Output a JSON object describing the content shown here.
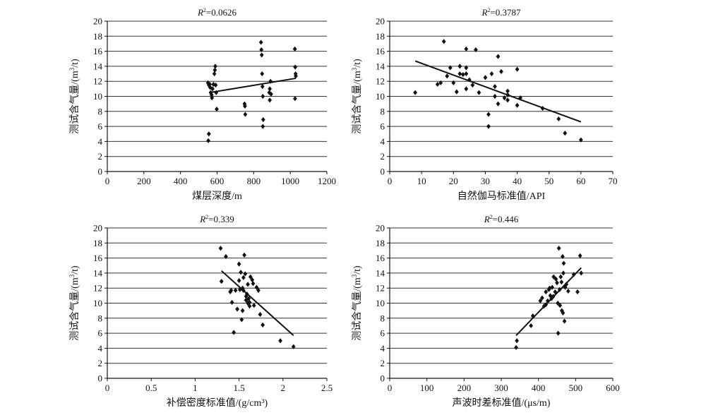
{
  "chart_data": [
    {
      "type": "scatter",
      "title_prefix": "R",
      "title_sup": "2",
      "title_value": "=0.0626",
      "xlabel": "煤层深度/m",
      "ylabel_main": "测试含气量/(m",
      "ylabel_sup": "3",
      "ylabel_end": "/t)",
      "xlim": [
        0,
        1200
      ],
      "ylim": [
        0,
        20
      ],
      "xticks": [
        "0",
        "200",
        "400",
        "600",
        "800",
        "1000",
        "1200"
      ],
      "yticks": [
        "0",
        "2",
        "4",
        "6",
        "8",
        "10",
        "12",
        "14",
        "16",
        "18",
        "20"
      ],
      "grid": "horizontal",
      "trendline": [
        [
          560,
          10.5
        ],
        [
          1030,
          12.4
        ]
      ],
      "points": [
        [
          550,
          11.8
        ],
        [
          555,
          11.5
        ],
        [
          560,
          11.6
        ],
        [
          562,
          11.2
        ],
        [
          565,
          10.5
        ],
        [
          570,
          10.2
        ],
        [
          572,
          9.8
        ],
        [
          575,
          11.0
        ],
        [
          580,
          11.6
        ],
        [
          585,
          13.0
        ],
        [
          588,
          13.5
        ],
        [
          590,
          14.0
        ],
        [
          592,
          11.5
        ],
        [
          595,
          10.5
        ],
        [
          598,
          8.3
        ],
        [
          555,
          5.0
        ],
        [
          552,
          4.1
        ],
        [
          750,
          9.0
        ],
        [
          752,
          8.7
        ],
        [
          754,
          7.6
        ],
        [
          840,
          17.2
        ],
        [
          842,
          16.2
        ],
        [
          844,
          15.5
        ],
        [
          846,
          13.0
        ],
        [
          848,
          11.3
        ],
        [
          850,
          10.0
        ],
        [
          852,
          6.9
        ],
        [
          850,
          6.0
        ],
        [
          885,
          10.5
        ],
        [
          888,
          11.0
        ],
        [
          892,
          12.0
        ],
        [
          895,
          10.3
        ],
        [
          888,
          9.5
        ],
        [
          1025,
          16.3
        ],
        [
          1027,
          13.9
        ],
        [
          1029,
          13.0
        ],
        [
          1030,
          12.7
        ],
        [
          1026,
          9.7
        ]
      ]
    },
    {
      "type": "scatter",
      "title_prefix": "R",
      "title_sup": "2",
      "title_value": "=0.3787",
      "xlabel": "自然伽马标准值/API",
      "ylabel_main": "测试含气量/(m",
      "ylabel_sup": "3",
      "ylabel_end": "/t)",
      "xlim": [
        0,
        70
      ],
      "ylim": [
        0,
        20
      ],
      "xticks": [
        "0",
        "10",
        "20",
        "30",
        "40",
        "50",
        "60",
        "70"
      ],
      "yticks": [
        "0",
        "2",
        "4",
        "6",
        "8",
        "10",
        "12",
        "14",
        "16",
        "18",
        "20"
      ],
      "grid": "horizontal",
      "trendline": [
        [
          8,
          14.7
        ],
        [
          60,
          6.6
        ]
      ],
      "points": [
        [
          8,
          10.5
        ],
        [
          15,
          11.6
        ],
        [
          16,
          11.8
        ],
        [
          17,
          17.3
        ],
        [
          18,
          12.7
        ],
        [
          19,
          13.8
        ],
        [
          20,
          11.8
        ],
        [
          21,
          10.6
        ],
        [
          22,
          13.0
        ],
        [
          22,
          14.0
        ],
        [
          23,
          12.9
        ],
        [
          24,
          16.3
        ],
        [
          24,
          13.8
        ],
        [
          24,
          13.0
        ],
        [
          24,
          11.0
        ],
        [
          25,
          12.2
        ],
        [
          26,
          11.5
        ],
        [
          27,
          16.2
        ],
        [
          28,
          10.5
        ],
        [
          30,
          12.5
        ],
        [
          31,
          7.6
        ],
        [
          31,
          6.0
        ],
        [
          32,
          13.0
        ],
        [
          33,
          11.3
        ],
        [
          33,
          10.0
        ],
        [
          34,
          15.3
        ],
        [
          34,
          9.0
        ],
        [
          35,
          13.3
        ],
        [
          36,
          9.8
        ],
        [
          37,
          10.7
        ],
        [
          37,
          10.2
        ],
        [
          37,
          9.5
        ],
        [
          40,
          13.6
        ],
        [
          40,
          8.8
        ],
        [
          41,
          9.8
        ],
        [
          48,
          8.4
        ],
        [
          53,
          7.0
        ],
        [
          55,
          5.1
        ],
        [
          60,
          4.2
        ]
      ]
    },
    {
      "type": "scatter",
      "title_prefix": "R",
      "title_sup": "2",
      "title_value": "=0.339",
      "xlabel": "补偿密度标准值/(g/cm³)",
      "ylabel_main": "测试含气量/(m",
      "ylabel_sup": "3",
      "ylabel_end": "/t)",
      "xlim": [
        0,
        2.5
      ],
      "ylim": [
        0,
        20
      ],
      "xticks": [
        "0",
        "0.5",
        "1",
        "1.5",
        "2",
        "2.5"
      ],
      "yticks": [
        "0",
        "2",
        "4",
        "6",
        "8",
        "10",
        "12",
        "14",
        "16",
        "18",
        "20"
      ],
      "grid": "horizontal",
      "trendline": [
        [
          1.3,
          14.3
        ],
        [
          2.12,
          5.7
        ]
      ],
      "points": [
        [
          1.29,
          17.3
        ],
        [
          1.3,
          12.9
        ],
        [
          1.35,
          16.2
        ],
        [
          1.4,
          11.5
        ],
        [
          1.41,
          11.7
        ],
        [
          1.42,
          10.1
        ],
        [
          1.44,
          6.1
        ],
        [
          1.46,
          11.7
        ],
        [
          1.48,
          9.2
        ],
        [
          1.5,
          15.2
        ],
        [
          1.5,
          13.0
        ],
        [
          1.51,
          11.8
        ],
        [
          1.52,
          14.1
        ],
        [
          1.53,
          7.8
        ],
        [
          1.54,
          9.0
        ],
        [
          1.54,
          12.0
        ],
        [
          1.55,
          11.7
        ],
        [
          1.55,
          13.4
        ],
        [
          1.56,
          16.4
        ],
        [
          1.57,
          13.9
        ],
        [
          1.58,
          10.9
        ],
        [
          1.58,
          10.4
        ],
        [
          1.59,
          11.2
        ],
        [
          1.6,
          10.0
        ],
        [
          1.6,
          12.5
        ],
        [
          1.61,
          10.6
        ],
        [
          1.62,
          10.1
        ],
        [
          1.62,
          9.6
        ],
        [
          1.63,
          13.5
        ],
        [
          1.65,
          13.1
        ],
        [
          1.66,
          12.6
        ],
        [
          1.67,
          9.7
        ],
        [
          1.7,
          12.1
        ],
        [
          1.72,
          11.7
        ],
        [
          1.74,
          8.5
        ],
        [
          1.77,
          7.1
        ],
        [
          1.97,
          5.0
        ],
        [
          2.12,
          4.2
        ]
      ]
    },
    {
      "type": "scatter",
      "title_prefix": "R",
      "title_sup": "2",
      "title_value": "=0.446",
      "xlabel": "声波时差标准值/(μs/m)",
      "ylabel_main": "测试含气量/(m",
      "ylabel_sup": "3",
      "ylabel_end": "/t)",
      "xlim": [
        0,
        600
      ],
      "ylim": [
        0,
        20
      ],
      "xticks": [
        "0",
        "100",
        "200",
        "300",
        "400",
        "500",
        "600"
      ],
      "yticks": [
        "0",
        "2",
        "4",
        "6",
        "8",
        "10",
        "12",
        "14",
        "16",
        "18",
        "20"
      ],
      "grid": "horizontal",
      "trendline": [
        [
          340,
          5.7
        ],
        [
          515,
          14.7
        ]
      ],
      "points": [
        [
          340,
          4.1
        ],
        [
          342,
          5.0
        ],
        [
          380,
          7.0
        ],
        [
          385,
          8.3
        ],
        [
          405,
          10.3
        ],
        [
          410,
          10.7
        ],
        [
          415,
          9.6
        ],
        [
          420,
          11.5
        ],
        [
          420,
          9.8
        ],
        [
          425,
          10.3
        ],
        [
          428,
          11.8
        ],
        [
          430,
          12.0
        ],
        [
          432,
          11.0
        ],
        [
          435,
          10.6
        ],
        [
          437,
          12.1
        ],
        [
          440,
          10.9
        ],
        [
          441,
          13.5
        ],
        [
          445,
          11.5
        ],
        [
          447,
          13.2
        ],
        [
          450,
          12.7
        ],
        [
          452,
          10.0
        ],
        [
          453,
          6.0
        ],
        [
          455,
          17.3
        ],
        [
          457,
          11.8
        ],
        [
          458,
          9.7
        ],
        [
          460,
          13.5
        ],
        [
          462,
          12.8
        ],
        [
          463,
          9.0
        ],
        [
          465,
          16.2
        ],
        [
          466,
          8.7
        ],
        [
          467,
          14.0
        ],
        [
          468,
          15.3
        ],
        [
          470,
          7.6
        ],
        [
          472,
          12.1
        ],
        [
          475,
          12.5
        ],
        [
          480,
          11.6
        ],
        [
          495,
          13.8
        ],
        [
          505,
          11.5
        ],
        [
          512,
          16.3
        ],
        [
          515,
          14.0
        ]
      ]
    }
  ]
}
